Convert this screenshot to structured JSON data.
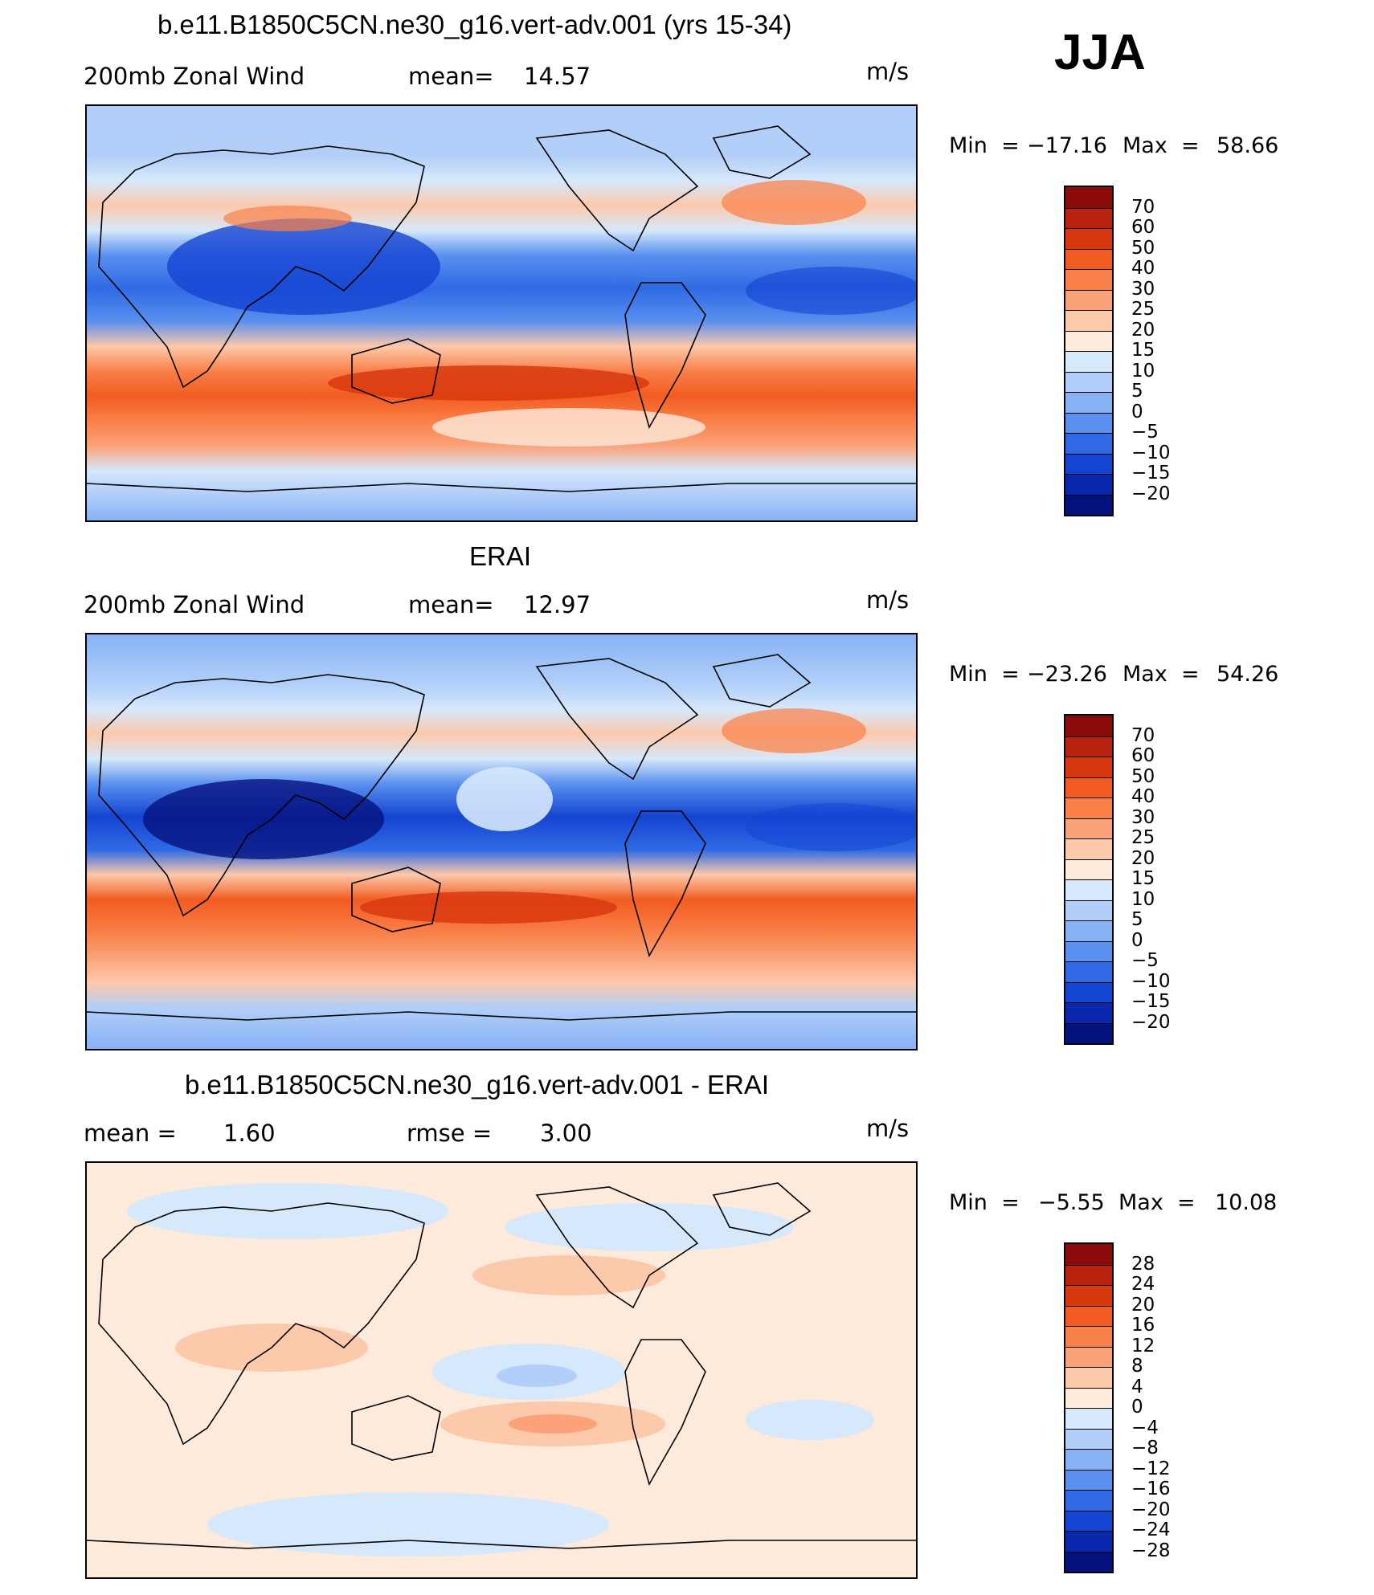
{
  "season": "JJA",
  "chart_data": [
    {
      "type": "heatmap",
      "title": "b.e11.B1850C5CN.ne30_g16.vert-adv.001 (yrs 15-34)",
      "variable": "200mb Zonal Wind",
      "stat_label": "mean=",
      "stat_value": "14.57",
      "units": "m/s",
      "min_label": "Min  =",
      "min_value": "−17.16",
      "max_label": "Max  =",
      "max_value": "58.66",
      "colorbar_levels": [
        "70",
        "60",
        "50",
        "40",
        "30",
        "25",
        "20",
        "15",
        "10",
        "5",
        "0",
        "−5",
        "−10",
        "−15",
        "−20"
      ],
      "colorbar_colors": [
        "#8b0a0a",
        "#b8220e",
        "#d9380f",
        "#f25c22",
        "#f98048",
        "#fba27a",
        "#fdc9ab",
        "#fdeadb",
        "#d6e8fc",
        "#b1cff8",
        "#88b2f4",
        "#5a90ef",
        "#2f6ae4",
        "#1444d2",
        "#0a28ae",
        "#05127e"
      ]
    },
    {
      "type": "heatmap",
      "title": "ERAI",
      "variable": "200mb Zonal Wind",
      "stat_label": "mean=",
      "stat_value": "12.97",
      "units": "m/s",
      "min_label": "Min  =",
      "min_value": "−23.26",
      "max_label": "Max  =",
      "max_value": "54.26",
      "colorbar_levels": [
        "70",
        "60",
        "50",
        "40",
        "30",
        "25",
        "20",
        "15",
        "10",
        "5",
        "0",
        "−5",
        "−10",
        "−15",
        "−20"
      ],
      "colorbar_colors": [
        "#8b0a0a",
        "#b8220e",
        "#d9380f",
        "#f25c22",
        "#f98048",
        "#fba27a",
        "#fdc9ab",
        "#fdeadb",
        "#d6e8fc",
        "#b1cff8",
        "#88b2f4",
        "#5a90ef",
        "#2f6ae4",
        "#1444d2",
        "#0a28ae",
        "#05127e"
      ]
    },
    {
      "type": "heatmap",
      "title": "b.e11.B1850C5CN.ne30_g16.vert-adv.001 - ERAI",
      "stat_label": "mean =",
      "stat_value": "1.60",
      "stat2_label": "rmse =",
      "stat2_value": "3.00",
      "units": "m/s",
      "min_label": "Min  =",
      "min_value": "−5.55",
      "max_label": "Max  =",
      "max_value": "10.08",
      "colorbar_levels": [
        "28",
        "24",
        "20",
        "16",
        "12",
        "8",
        "4",
        "0",
        "−4",
        "−8",
        "−12",
        "−16",
        "−20",
        "−24",
        "−28"
      ],
      "colorbar_colors": [
        "#8b0a0a",
        "#b8220e",
        "#d9380f",
        "#f25c22",
        "#f98048",
        "#fba27a",
        "#fdc9ab",
        "#fdeadb",
        "#d6e8fc",
        "#b1cff8",
        "#88b2f4",
        "#5a90ef",
        "#2f6ae4",
        "#1444d2",
        "#0a28ae",
        "#05127e"
      ]
    }
  ]
}
